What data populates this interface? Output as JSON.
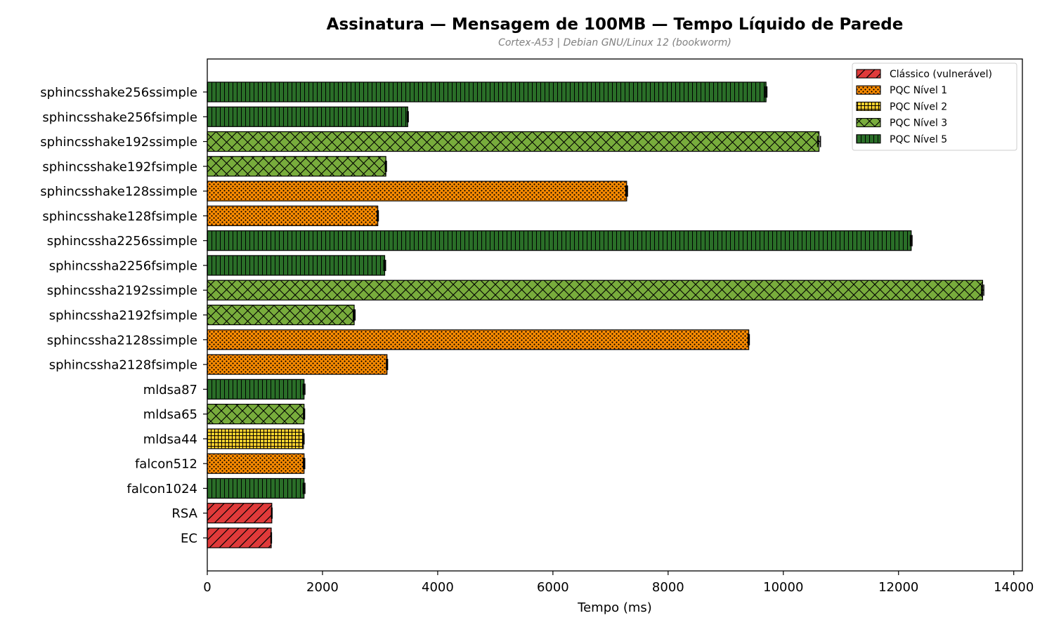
{
  "chart_data": {
    "type": "bar",
    "orientation": "horizontal",
    "title": "Assinatura — Mensagem de 100MB — Tempo Líquido de Parede",
    "subtitle": "Cortex-A53 | Debian GNU/Linux 12 (bookworm)",
    "xlabel": "Tempo (ms)",
    "ylabel": "",
    "xlim": [
      0,
      14150
    ],
    "xticks": [
      0,
      2000,
      4000,
      6000,
      8000,
      10000,
      12000,
      14000
    ],
    "grid": false,
    "legend_position": "top-right",
    "levels": [
      {
        "key": "classic",
        "label": "Clássico (vulnerável)",
        "color": "#e03a3a",
        "hatch": "diagonal"
      },
      {
        "key": "l1",
        "label": "PQC Nível 1",
        "color": "#ff8c00",
        "hatch": "dots"
      },
      {
        "key": "l2",
        "label": "PQC Nível 2",
        "color": "#ffd12e",
        "hatch": "grid"
      },
      {
        "key": "l3",
        "label": "PQC Nível 3",
        "color": "#78ac3c",
        "hatch": "crosshatch"
      },
      {
        "key": "l5",
        "label": "PQC Nível 5",
        "color": "#2a6e28",
        "hatch": "vertical"
      }
    ],
    "bars": [
      {
        "name": "sphincsshake256ssimple",
        "value": 9700,
        "err": 15,
        "level": "l5"
      },
      {
        "name": "sphincsshake256fsimple",
        "value": 3480,
        "err": 10,
        "level": "l5"
      },
      {
        "name": "sphincsshake192ssimple",
        "value": 10620,
        "err": 25,
        "level": "l3"
      },
      {
        "name": "sphincsshake192fsimple",
        "value": 3100,
        "err": 10,
        "level": "l3"
      },
      {
        "name": "sphincsshake128ssimple",
        "value": 7280,
        "err": 15,
        "level": "l1"
      },
      {
        "name": "sphincsshake128fsimple",
        "value": 2960,
        "err": 10,
        "level": "l1"
      },
      {
        "name": "sphincssha2256ssimple",
        "value": 12220,
        "err": 15,
        "level": "l5"
      },
      {
        "name": "sphincssha2256fsimple",
        "value": 3080,
        "err": 15,
        "level": "l5"
      },
      {
        "name": "sphincssha2192ssimple",
        "value": 13460,
        "err": 20,
        "level": "l3"
      },
      {
        "name": "sphincssha2192fsimple",
        "value": 2550,
        "err": 15,
        "level": "l3"
      },
      {
        "name": "sphincssha2128ssimple",
        "value": 9400,
        "err": 10,
        "level": "l1"
      },
      {
        "name": "sphincssha2128fsimple",
        "value": 3120,
        "err": 10,
        "level": "l1"
      },
      {
        "name": "mldsa87",
        "value": 1680,
        "err": 15,
        "level": "l5"
      },
      {
        "name": "mldsa65",
        "value": 1680,
        "err": 10,
        "level": "l3"
      },
      {
        "name": "mldsa44",
        "value": 1670,
        "err": 10,
        "level": "l2"
      },
      {
        "name": "falcon512",
        "value": 1680,
        "err": 12,
        "level": "l1"
      },
      {
        "name": "falcon1024",
        "value": 1680,
        "err": 15,
        "level": "l5"
      },
      {
        "name": "RSA",
        "value": 1120,
        "err": 5,
        "level": "classic"
      },
      {
        "name": "EC",
        "value": 1110,
        "err": 5,
        "level": "classic"
      }
    ]
  }
}
